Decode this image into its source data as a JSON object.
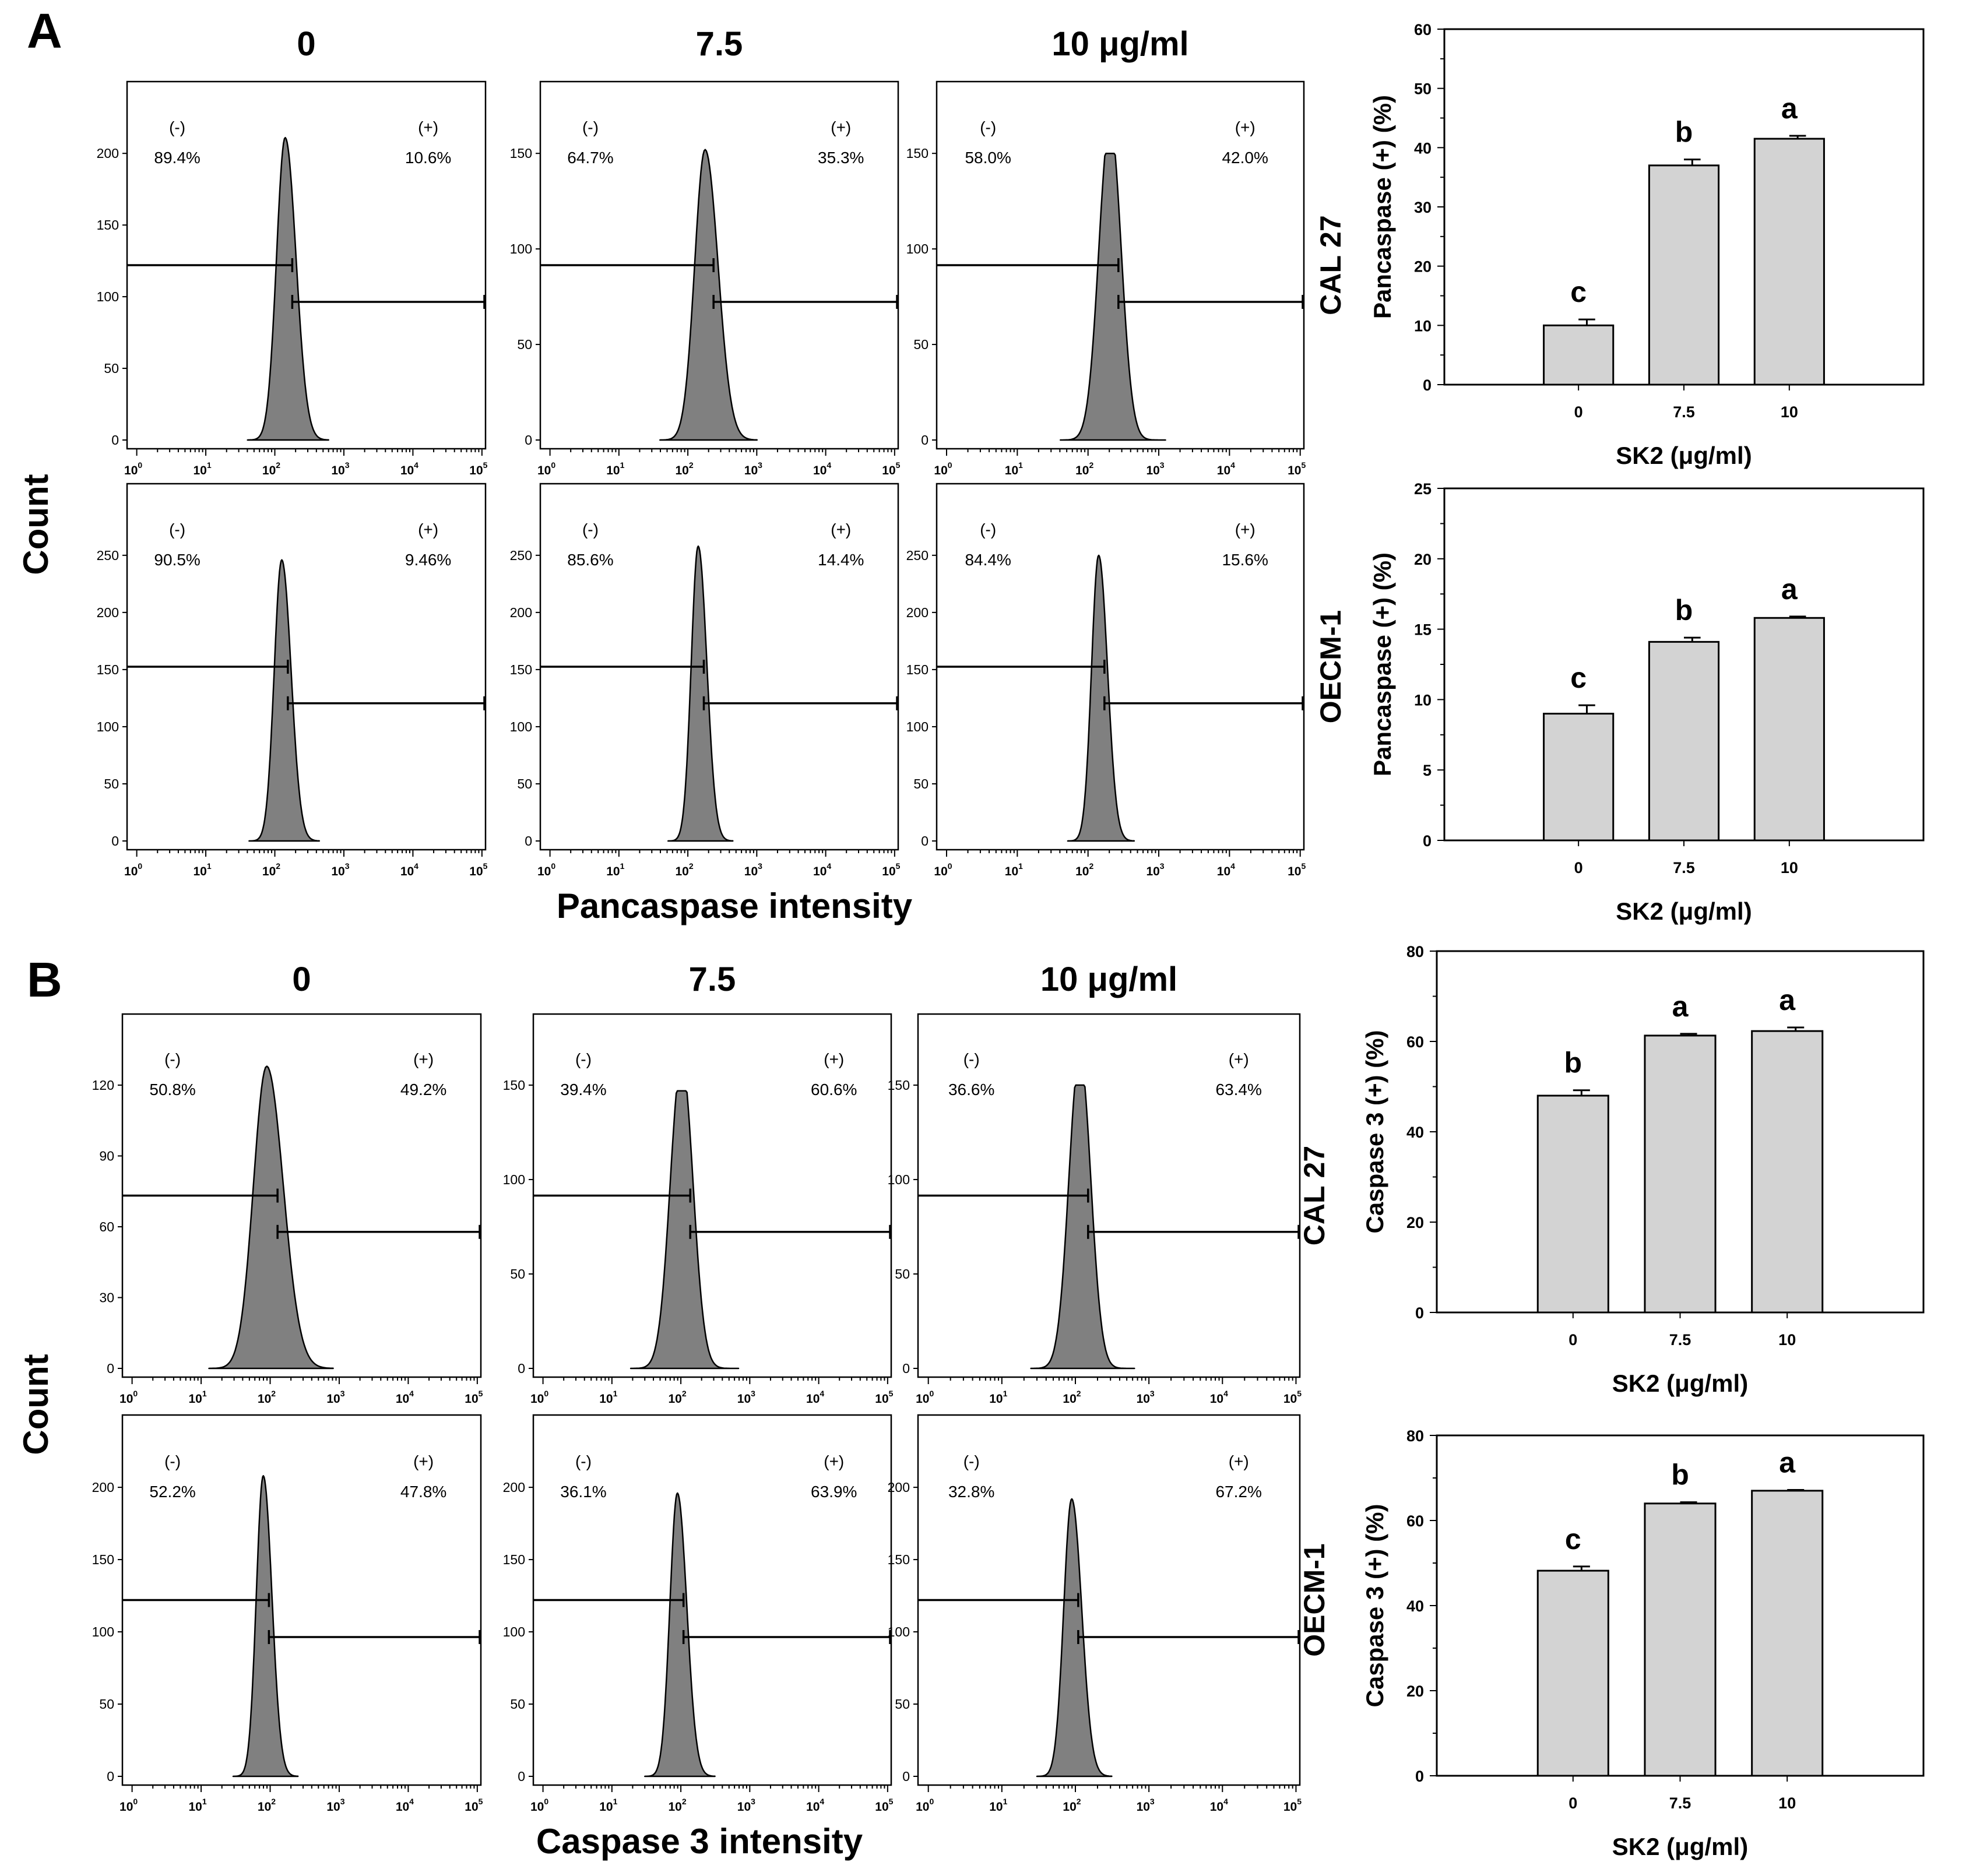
{
  "figure": {
    "panels": [
      {
        "letter": "A",
        "column_titles": [
          "0",
          "7.5",
          "10 μg/ml"
        ],
        "x_axis_label": "Pancaspase intensity",
        "y_axis_label": "Count",
        "histogram_rows": [
          {
            "cell_line": "CAL 27",
            "histograms": [
              {
                "ymax": 200,
                "yticks": [
                  0,
                  50,
                  100,
                  150,
                  200
                ],
                "neg_label": "(-)",
                "pos_label": "(+)",
                "neg": "89.4%",
                "pos": "10.6%",
                "peak_log": 2.15,
                "peak_count": 211,
                "width": 0.3
              },
              {
                "ymax": 150,
                "yticks": [
                  0,
                  50,
                  100,
                  150
                ],
                "neg_label": "(-)",
                "pos_label": "(+)",
                "neg": "64.7%",
                "pos": "35.3%",
                "peak_log": 2.25,
                "peak_count": 152,
                "width": 0.36
              },
              {
                "ymax": 150,
                "yticks": [
                  0,
                  50,
                  100,
                  150
                ],
                "neg_label": "(-)",
                "pos_label": "(+)",
                "neg": "58.0%",
                "pos": "42.0%",
                "peak_log": 2.3,
                "peak_count": 150,
                "width": 0.38,
                "double_peak": true
              }
            ]
          },
          {
            "cell_line": "OECM-1",
            "histograms": [
              {
                "ymax": 250,
                "yticks": [
                  0,
                  50,
                  100,
                  150,
                  200,
                  250
                ],
                "neg_label": "(-)",
                "pos_label": "(+)",
                "neg": "90.5%",
                "pos": "9.46%",
                "peak_log": 2.1,
                "peak_count": 246,
                "width": 0.26
              },
              {
                "ymax": 250,
                "yticks": [
                  0,
                  50,
                  100,
                  150,
                  200,
                  250
                ],
                "neg_label": "(-)",
                "pos_label": "(+)",
                "neg": "85.6%",
                "pos": "14.4%",
                "peak_log": 2.15,
                "peak_count": 258,
                "width": 0.24
              },
              {
                "ymax": 250,
                "yticks": [
                  0,
                  50,
                  100,
                  150,
                  200,
                  250
                ],
                "neg_label": "(-)",
                "pos_label": "(+)",
                "neg": "84.4%",
                "pos": "15.6%",
                "peak_log": 2.15,
                "peak_count": 250,
                "width": 0.24
              }
            ]
          }
        ]
      },
      {
        "letter": "B",
        "column_titles": [
          "0",
          "7.5",
          "10 μg/ml"
        ],
        "x_axis_label": "Caspase 3 intensity",
        "y_axis_label": "Count",
        "histogram_rows": [
          {
            "cell_line": "CAL 27",
            "histograms": [
              {
                "ymax": 120,
                "yticks": [
                  0,
                  30,
                  60,
                  90,
                  120
                ],
                "neg_label": "(-)",
                "pos_label": "(+)",
                "neg": "50.8%",
                "pos": "49.2%",
                "peak_log": 1.95,
                "peak_count": 128,
                "width": 0.46
              },
              {
                "ymax": 150,
                "yticks": [
                  0,
                  50,
                  100,
                  150
                ],
                "neg_label": "(-)",
                "pos_label": "(+)",
                "neg": "39.4%",
                "pos": "60.6%",
                "peak_log": 2.0,
                "peak_count": 147,
                "width": 0.4,
                "double_peak": true
              },
              {
                "ymax": 150,
                "yticks": [
                  0,
                  50,
                  100,
                  150
                ],
                "neg_label": "(-)",
                "pos_label": "(+)",
                "neg": "36.6%",
                "pos": "63.4%",
                "peak_log": 2.05,
                "peak_count": 150,
                "width": 0.36,
                "double_peak": true
              }
            ]
          },
          {
            "cell_line": "OECM-1",
            "histograms": [
              {
                "ymax": 200,
                "yticks": [
                  0,
                  50,
                  100,
                  150,
                  200
                ],
                "neg_label": "(-)",
                "pos_label": "(+)",
                "neg": "52.2%",
                "pos": "47.8%",
                "peak_log": 1.9,
                "peak_count": 208,
                "width": 0.24
              },
              {
                "ymax": 200,
                "yticks": [
                  0,
                  50,
                  100,
                  150,
                  200
                ],
                "neg_label": "(-)",
                "pos_label": "(+)",
                "neg": "36.1%",
                "pos": "63.9%",
                "peak_log": 1.95,
                "peak_count": 196,
                "width": 0.26
              },
              {
                "ymax": 200,
                "yticks": [
                  0,
                  50,
                  100,
                  150,
                  200
                ],
                "neg_label": "(-)",
                "pos_label": "(+)",
                "neg": "32.8%",
                "pos": "67.2%",
                "peak_log": 1.95,
                "peak_count": 192,
                "width": 0.26
              }
            ]
          }
        ]
      }
    ],
    "histogram_x_ticks": [
      "0",
      "1",
      "2",
      "3",
      "4",
      "5"
    ]
  },
  "chart_data": [
    {
      "type": "bar",
      "panel": "A",
      "cell_line": "CAL 27",
      "categories": [
        "0",
        "7.5",
        "10"
      ],
      "values": [
        10,
        37,
        41.5
      ],
      "errors": [
        1.0,
        1.0,
        0.5
      ],
      "significance": [
        "c",
        "b",
        "a"
      ],
      "ylabel": "Pancaspase (+) (%)",
      "xlabel": "SK2 (μg/ml)",
      "ylim": [
        0,
        60
      ],
      "yticks": [
        0,
        10,
        20,
        30,
        40,
        50,
        60
      ]
    },
    {
      "type": "bar",
      "panel": "A",
      "cell_line": "OECM-1",
      "categories": [
        "0",
        "7.5",
        "10"
      ],
      "values": [
        9,
        14.1,
        15.8
      ],
      "errors": [
        0.6,
        0.3,
        0.1
      ],
      "significance": [
        "c",
        "b",
        "a"
      ],
      "ylabel": "Pancaspase (+) (%)",
      "xlabel": "SK2 (μg/ml)",
      "ylim": [
        0,
        25
      ],
      "yticks": [
        0,
        5,
        10,
        15,
        20,
        25
      ]
    },
    {
      "type": "bar",
      "panel": "B",
      "cell_line": "CAL 27",
      "categories": [
        "0",
        "7.5",
        "10"
      ],
      "values": [
        48,
        61.3,
        62.3
      ],
      "errors": [
        1.2,
        0.4,
        0.8
      ],
      "significance": [
        "b",
        "a",
        "a"
      ],
      "ylabel": "Caspase 3 (+) (%)",
      "xlabel": "SK2 (μg/ml)",
      "ylim": [
        0,
        80
      ],
      "yticks": [
        0,
        20,
        40,
        60,
        80
      ]
    },
    {
      "type": "bar",
      "panel": "B",
      "cell_line": "OECM-1",
      "categories": [
        "0",
        "7.5",
        "10"
      ],
      "values": [
        48.2,
        64,
        67
      ],
      "errors": [
        1.0,
        0.3,
        0.2
      ],
      "significance": [
        "c",
        "b",
        "a"
      ],
      "ylabel": "Caspase 3 (+) (%)",
      "xlabel": "SK2 (μg/ml)",
      "ylim": [
        0,
        80
      ],
      "yticks": [
        0,
        20,
        40,
        60,
        80
      ]
    }
  ]
}
